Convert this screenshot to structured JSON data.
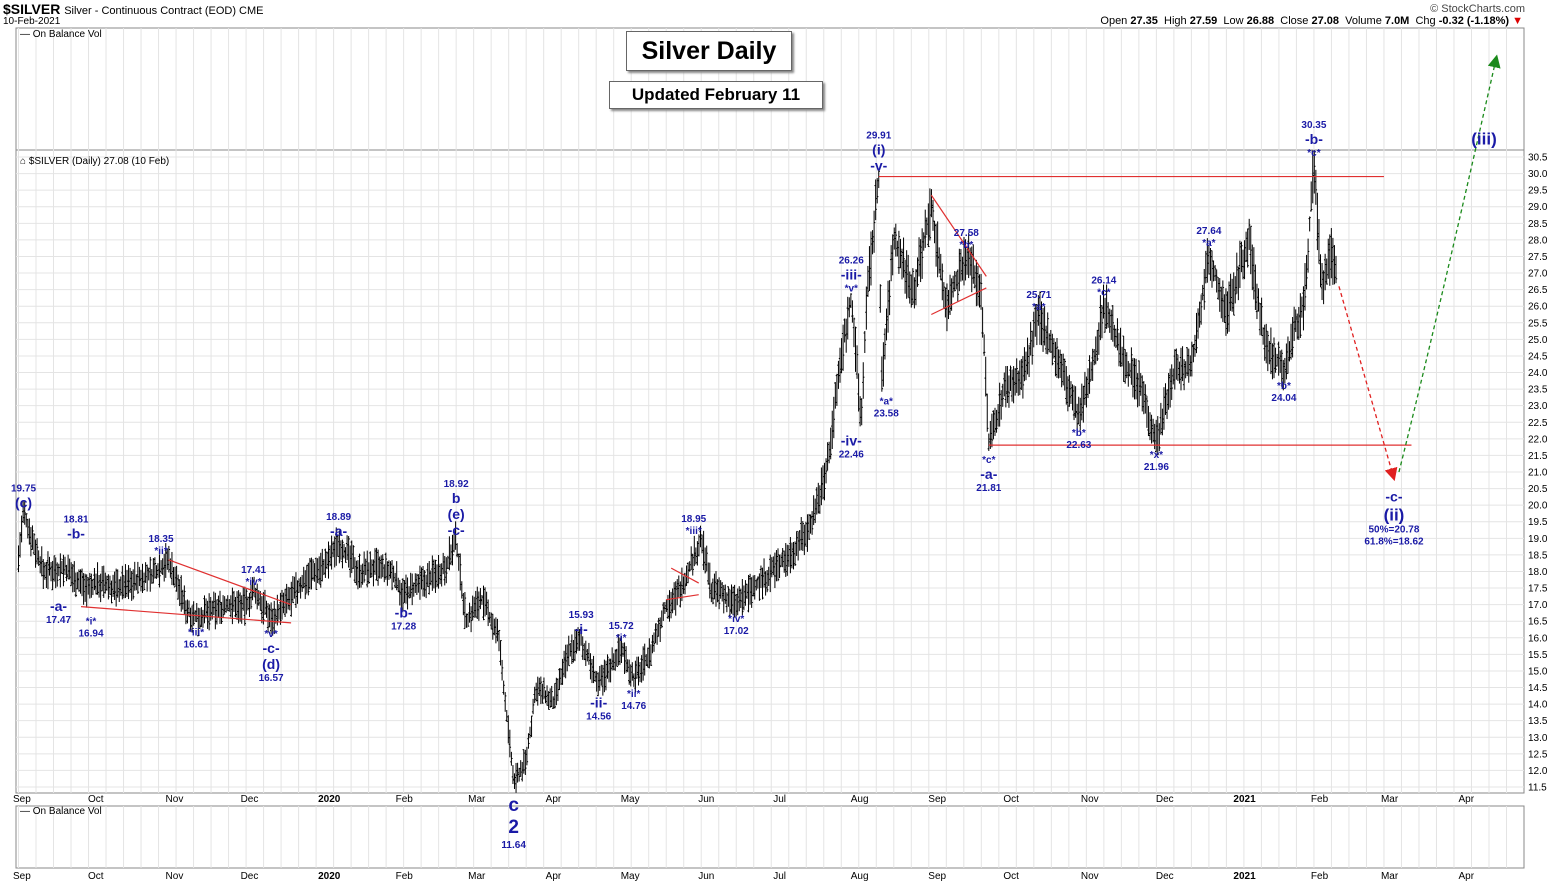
{
  "header": {
    "symbol": "$SILVER",
    "description": "Silver - Continuous Contract (EOD) CME",
    "date": "10-Feb-2021",
    "brand": "© StockCharts.com",
    "ohlc": {
      "open_label": "Open",
      "open": "27.35",
      "high_label": "High",
      "high": "27.59",
      "low_label": "Low",
      "low": "26.88",
      "close_label": "Close",
      "close": "27.08",
      "volume_label": "Volume",
      "volume": "7.0M",
      "chg_label": "Chg",
      "chg": "-0.32 (-1.18%)",
      "chg_arrow": "▼"
    }
  },
  "panels": {
    "top_indicator": "On Balance Vol",
    "main_legend": "$SILVER (Daily) 27.08 (10 Feb)",
    "bottom_indicator": "On Balance Vol"
  },
  "title_box": "Silver Daily",
  "updated_box": "Updated February 11",
  "colors": {
    "price_bar": "#000000",
    "annotation": "#1a1aa6",
    "trendline": "#e03030",
    "projection_up": "#1a8a1a",
    "projection_down": "#e02020",
    "grid": "#e4e4e4"
  },
  "chart_data": {
    "type": "ohlc",
    "x_ticks": [
      "Sep",
      "Oct",
      "Nov",
      "Dec",
      "2020",
      "Feb",
      "Mar",
      "Apr",
      "May",
      "Jun",
      "Jul",
      "Aug",
      "Sep",
      "Oct",
      "Nov",
      "Dec",
      "2021",
      "Feb",
      "Mar",
      "Apr"
    ],
    "ylim": [
      11.5,
      30.5
    ],
    "y_ticks": [
      "11.5",
      "12.0",
      "12.5",
      "13.0",
      "13.5",
      "14.0",
      "14.5",
      "15.0",
      "15.5",
      "16.0",
      "16.5",
      "17.0",
      "17.5",
      "18.0",
      "18.5",
      "19.0",
      "19.5",
      "20.0",
      "20.5",
      "21.0",
      "21.5",
      "22.0",
      "22.5",
      "23.0",
      "23.5",
      "24.0",
      "24.5",
      "25.0",
      "25.5",
      "26.0",
      "26.5",
      "27.0",
      "27.5",
      "28.0",
      "28.5",
      "29.0",
      "29.5",
      "30.0",
      "30.5"
    ],
    "price_path": [
      [
        "2019-09-02",
        18.4
      ],
      [
        "2019-09-04",
        19.75
      ],
      [
        "2019-09-12",
        18.0
      ],
      [
        "2019-09-20",
        18.1
      ],
      [
        "2019-09-30",
        17.47
      ],
      [
        "2019-10-03",
        17.7
      ],
      [
        "2019-10-10",
        17.5
      ],
      [
        "2019-10-25",
        17.9
      ],
      [
        "2019-11-01",
        18.35
      ],
      [
        "2019-11-08",
        16.9
      ],
      [
        "2019-11-12",
        16.61
      ],
      [
        "2019-11-25",
        17.0
      ],
      [
        "2019-12-02",
        16.95
      ],
      [
        "2019-12-05",
        17.41
      ],
      [
        "2019-12-12",
        16.57
      ],
      [
        "2019-12-20",
        17.2
      ],
      [
        "2019-12-27",
        17.9
      ],
      [
        "2020-01-03",
        18.2
      ],
      [
        "2020-01-08",
        18.89
      ],
      [
        "2020-01-16",
        18.0
      ],
      [
        "2020-01-23",
        18.1
      ],
      [
        "2020-01-30",
        17.9
      ],
      [
        "2020-02-03",
        17.28
      ],
      [
        "2020-02-10",
        17.6
      ],
      [
        "2020-02-20",
        18.2
      ],
      [
        "2020-02-24",
        18.92
      ],
      [
        "2020-02-28",
        16.5
      ],
      [
        "2020-03-05",
        17.2
      ],
      [
        "2020-03-12",
        16.0
      ],
      [
        "2020-03-18",
        11.64
      ],
      [
        "2020-03-23",
        12.3
      ],
      [
        "2020-03-27",
        14.5
      ],
      [
        "2020-04-03",
        14.0
      ],
      [
        "2020-04-09",
        15.6
      ],
      [
        "2020-04-14",
        15.93
      ],
      [
        "2020-04-21",
        14.56
      ],
      [
        "2020-04-30",
        15.72
      ],
      [
        "2020-05-05",
        14.76
      ],
      [
        "2020-05-12",
        15.6
      ],
      [
        "2020-05-18",
        17.0
      ],
      [
        "2020-05-22",
        17.2
      ],
      [
        "2020-06-01",
        18.95
      ],
      [
        "2020-06-05",
        17.5
      ],
      [
        "2020-06-15",
        17.02
      ],
      [
        "2020-06-26",
        17.8
      ],
      [
        "2020-07-06",
        18.5
      ],
      [
        "2020-07-14",
        19.3
      ],
      [
        "2020-07-21",
        21.0
      ],
      [
        "2020-07-27",
        24.5
      ],
      [
        "2020-07-31",
        26.26
      ],
      [
        "2020-08-04",
        22.46
      ],
      [
        "2020-08-06",
        26.0
      ],
      [
        "2020-08-11",
        29.91
      ],
      [
        "2020-08-12",
        23.58
      ],
      [
        "2020-08-17",
        28.0
      ],
      [
        "2020-08-25",
        26.5
      ],
      [
        "2020-09-01",
        29.0
      ],
      [
        "2020-09-07",
        26.0
      ],
      [
        "2020-09-15",
        27.58
      ],
      [
        "2020-09-21",
        26.5
      ],
      [
        "2020-09-24",
        21.81
      ],
      [
        "2020-09-30",
        23.5
      ],
      [
        "2020-10-08",
        24.0
      ],
      [
        "2020-10-14",
        25.71
      ],
      [
        "2020-10-21",
        24.5
      ],
      [
        "2020-10-30",
        22.63
      ],
      [
        "2020-11-04",
        24.0
      ],
      [
        "2020-11-09",
        26.14
      ],
      [
        "2020-11-16",
        24.5
      ],
      [
        "2020-11-24",
        23.5
      ],
      [
        "2020-11-30",
        21.96
      ],
      [
        "2020-12-07",
        24.0
      ],
      [
        "2020-12-14",
        24.2
      ],
      [
        "2020-12-21",
        27.64
      ],
      [
        "2020-12-28",
        25.8
      ],
      [
        "2021-01-06",
        28.0
      ],
      [
        "2021-01-12",
        25.0
      ],
      [
        "2021-01-20",
        24.04
      ],
      [
        "2021-01-25",
        25.5
      ],
      [
        "2021-01-28",
        26.0
      ],
      [
        "2021-02-01",
        30.35
      ],
      [
        "2021-02-04",
        26.5
      ],
      [
        "2021-02-08",
        27.6
      ],
      [
        "2021-02-10",
        27.08
      ]
    ],
    "annotations": [
      {
        "date": "2019-09-04",
        "price": 19.75,
        "pos": "above",
        "lines": [
          "19.75",
          "(c)"
        ],
        "big": [
          1
        ]
      },
      {
        "date": "2019-09-25",
        "price": 18.81,
        "pos": "above",
        "lines": [
          "18.81",
          "-b-"
        ],
        "big": [
          1
        ]
      },
      {
        "date": "2019-09-18",
        "price": 17.47,
        "pos": "below",
        "lines": [
          "-a-",
          "17.47"
        ],
        "big": [
          0
        ]
      },
      {
        "date": "2019-10-01",
        "price": 16.94,
        "pos": "below",
        "lines": [
          "*i*",
          "16.94"
        ]
      },
      {
        "date": "2019-10-29",
        "price": 18.35,
        "pos": "above",
        "lines": [
          "18.35",
          "*ii*"
        ]
      },
      {
        "date": "2019-11-12",
        "price": 16.61,
        "pos": "below",
        "lines": [
          "*iii*",
          "16.61"
        ]
      },
      {
        "date": "2019-12-05",
        "price": 17.41,
        "pos": "above",
        "lines": [
          "17.41",
          "*iv*"
        ]
      },
      {
        "date": "2019-12-12",
        "price": 16.57,
        "pos": "below",
        "lines": [
          "*v*",
          "-c-",
          "(d)",
          "16.57"
        ],
        "big": [
          1,
          2
        ]
      },
      {
        "date": "2020-01-08",
        "price": 18.89,
        "pos": "above",
        "lines": [
          "18.89",
          "-a-"
        ],
        "big": [
          1
        ]
      },
      {
        "date": "2020-02-03",
        "price": 17.28,
        "pos": "below",
        "lines": [
          "-b-",
          "17.28"
        ],
        "big": [
          0
        ]
      },
      {
        "date": "2020-02-24",
        "price": 18.92,
        "pos": "above",
        "lines": [
          "18.92",
          "b",
          "(e)",
          "-c-"
        ],
        "big": [
          1,
          2,
          3
        ]
      },
      {
        "date": "2020-04-14",
        "price": 15.93,
        "pos": "above",
        "lines": [
          "15.93",
          "-i-"
        ],
        "big": [
          1
        ]
      },
      {
        "date": "2020-04-21",
        "price": 14.56,
        "pos": "below",
        "lines": [
          "-ii-",
          "14.56"
        ],
        "big": [
          0
        ]
      },
      {
        "date": "2020-04-30",
        "price": 15.72,
        "pos": "above",
        "lines": [
          "15.72",
          "*i*"
        ]
      },
      {
        "date": "2020-05-05",
        "price": 14.76,
        "pos": "below",
        "lines": [
          "*ii*",
          "14.76"
        ]
      },
      {
        "date": "2020-05-29",
        "price": 18.95,
        "pos": "above",
        "lines": [
          "18.95",
          "*iii*"
        ]
      },
      {
        "date": "2020-06-15",
        "price": 17.02,
        "pos": "below",
        "lines": [
          "*iv*",
          "17.02"
        ]
      },
      {
        "date": "2020-07-31",
        "price": 26.26,
        "pos": "above",
        "lines": [
          "26.26",
          "-iii-",
          "*v*"
        ],
        "big": [
          1
        ]
      },
      {
        "date": "2020-07-31",
        "price": 22.46,
        "pos": "below",
        "lines": [
          "-iv-",
          "22.46"
        ],
        "big": [
          0
        ]
      },
      {
        "date": "2020-08-11",
        "price": 29.91,
        "pos": "above",
        "lines": [
          "29.91",
          "(i)",
          "-v-"
        ],
        "big": [
          1,
          2
        ]
      },
      {
        "date": "2020-08-14",
        "price": 23.58,
        "pos": "below",
        "lines": [
          "*a*",
          "23.58"
        ]
      },
      {
        "date": "2020-09-15",
        "price": 27.58,
        "pos": "above",
        "lines": [
          "27.58",
          "*b*"
        ]
      },
      {
        "date": "2020-09-24",
        "price": 21.81,
        "pos": "below",
        "lines": [
          "*c*",
          "-a-",
          "21.81"
        ],
        "big": [
          1
        ]
      },
      {
        "date": "2020-10-14",
        "price": 25.71,
        "pos": "above",
        "lines": [
          "25.71",
          "*a*"
        ]
      },
      {
        "date": "2020-10-30",
        "price": 22.63,
        "pos": "below",
        "lines": [
          "*b*",
          "22.63"
        ]
      },
      {
        "date": "2020-11-09",
        "price": 26.14,
        "pos": "above",
        "lines": [
          "26.14",
          "*c*"
        ]
      },
      {
        "date": "2020-11-30",
        "price": 21.96,
        "pos": "below",
        "lines": [
          "*x*",
          "21.96"
        ]
      },
      {
        "date": "2020-12-21",
        "price": 27.64,
        "pos": "above",
        "lines": [
          "27.64",
          "*a*"
        ]
      },
      {
        "date": "2021-01-20",
        "price": 24.04,
        "pos": "below",
        "lines": [
          "*b*",
          "24.04"
        ]
      },
      {
        "date": "2021-02-01",
        "price": 30.35,
        "pos": "above",
        "lines": [
          "30.35",
          "-b-",
          "*c*"
        ],
        "big": [
          1
        ]
      },
      {
        "date": "2021-03-05",
        "price": 20.78,
        "pos": "below",
        "lines": [
          "-c-",
          "(ii)",
          "50%=20.78",
          "61.8%=18.62"
        ],
        "big": [
          0,
          1
        ],
        "huge": [
          1
        ]
      },
      {
        "date": "2021-04-10",
        "price": 30.7,
        "pos": "above",
        "lines": [
          "(iii)"
        ],
        "big": [
          0
        ],
        "huge": [
          0
        ]
      }
    ],
    "below_axis_label": {
      "date": "2020-03-18",
      "lines": [
        "c",
        "2",
        "11.64"
      ]
    },
    "resistance": {
      "from": "2020-08-11",
      "to": "2021-03-01",
      "price": 29.91
    },
    "support": {
      "from": "2020-09-24",
      "to": "2021-03-12",
      "price": 21.81
    },
    "triangles": [
      {
        "upper": [
          [
            "2019-11-01",
            18.35
          ],
          [
            "2019-12-20",
            17.0
          ]
        ],
        "lower": [
          [
            "2019-09-27",
            16.94
          ],
          [
            "2019-12-20",
            16.45
          ]
        ]
      },
      {
        "upper": [
          [
            "2020-09-01",
            29.35
          ],
          [
            "2020-09-23",
            26.9
          ]
        ],
        "lower": [
          [
            "2020-09-01",
            25.75
          ],
          [
            "2020-09-23",
            26.55
          ]
        ]
      },
      {
        "upper": [
          [
            "2020-05-20",
            18.1
          ],
          [
            "2020-05-31",
            17.65
          ]
        ],
        "lower": [
          [
            "2020-05-18",
            17.15
          ],
          [
            "2020-05-31",
            17.3
          ]
        ]
      }
    ],
    "projection_down": {
      "from": [
        "2021-02-11",
        26.6
      ],
      "to": [
        "2021-03-05",
        20.8
      ]
    },
    "projection_up": {
      "from": [
        "2021-03-07",
        21.0
      ],
      "to": [
        "2021-04-15",
        30.5
      ]
    }
  }
}
